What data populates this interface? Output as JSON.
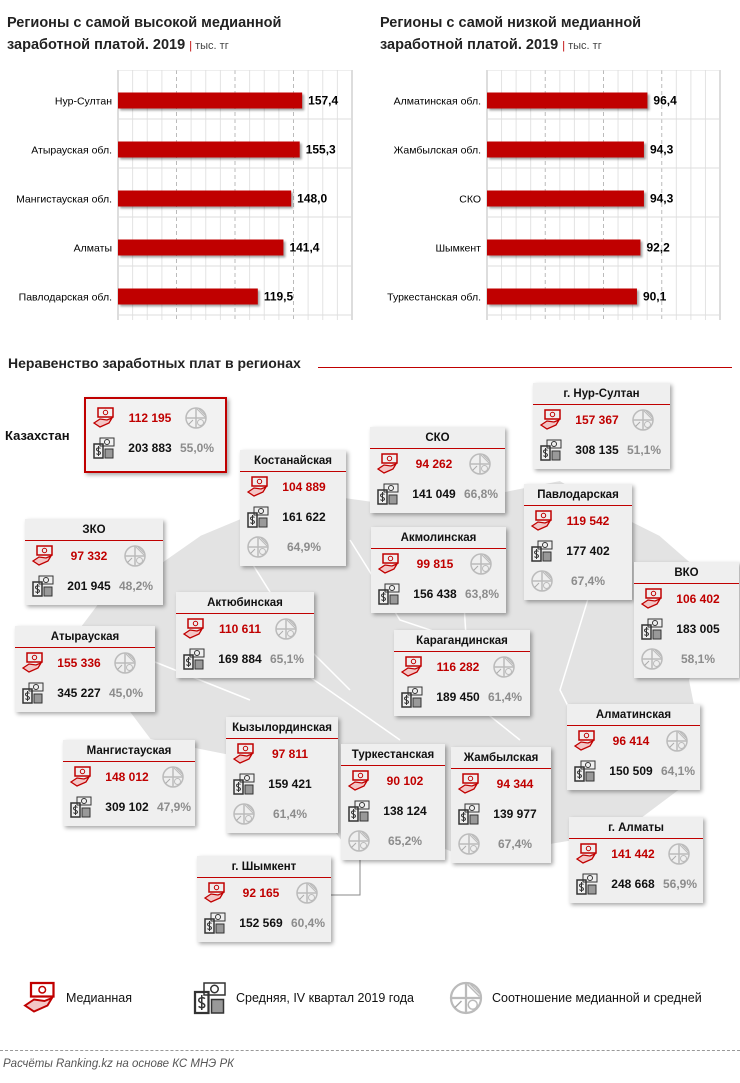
{
  "chart_data": [
    {
      "type": "bar",
      "orientation": "horizontal",
      "title": "Регионы с самой высокой медианной заработной платой. 2019",
      "unit": "тыс. тг",
      "categories": [
        "Нур-Султан",
        "Атырауская обл.",
        "Мангистауская обл.",
        "Алматы",
        "Павлодарская обл."
      ],
      "values": [
        157.4,
        155.3,
        148.0,
        141.4,
        119.5
      ],
      "labels": [
        "157,4",
        "155,3",
        "148,0",
        "141,4",
        "119,5"
      ],
      "xlim": [
        0,
        200
      ],
      "color": "#c00000",
      "grid": true
    },
    {
      "type": "bar",
      "orientation": "horizontal",
      "title": "Регионы с самой низкой медианной заработной платой. 2019",
      "unit": "тыс. тг",
      "categories": [
        "Алматинская обл.",
        "Жамбылская обл.",
        "СКО",
        "Шымкент",
        "Туркестанская обл."
      ],
      "values": [
        96.4,
        94.3,
        94.3,
        92.2,
        90.1
      ],
      "labels": [
        "96,4",
        "94,3",
        "94,3",
        "92,2",
        "90,1"
      ],
      "xlim": [
        0,
        140
      ],
      "color": "#c00000",
      "grid": true
    }
  ],
  "map": {
    "title": "Неравенство заработных плат в регионах",
    "country_label": "Казахстан",
    "regions": [
      {
        "name": "",
        "median": "112 195",
        "mean": "203 883",
        "ratio": "55,0%"
      },
      {
        "name": "г. Нур-Султан",
        "median": "157 367",
        "mean": "308 135",
        "ratio": "51,1%"
      },
      {
        "name": "СКО",
        "median": "94 262",
        "mean": "141 049",
        "ratio": "66,8%"
      },
      {
        "name": "Костанайская",
        "median": "104 889",
        "mean": "161 622",
        "ratio": "64,9%"
      },
      {
        "name": "Павлодарская",
        "median": "119 542",
        "mean": "177 402",
        "ratio": "67,4%"
      },
      {
        "name": "ЗКО",
        "median": "97 332",
        "mean": "201 945",
        "ratio": "48,2%"
      },
      {
        "name": "Акмолинская",
        "median": "99 815",
        "mean": "156 438",
        "ratio": "63,8%"
      },
      {
        "name": "ВКО",
        "median": "106 402",
        "mean": "183 005",
        "ratio": "58,1%"
      },
      {
        "name": "Актюбинская",
        "median": "110 611",
        "mean": "169 884",
        "ratio": "65,1%"
      },
      {
        "name": "Атырауская",
        "median": "155 336",
        "mean": "345 227",
        "ratio": "45,0%"
      },
      {
        "name": "Карагандинская",
        "median": "116 282",
        "mean": "189 450",
        "ratio": "61,4%"
      },
      {
        "name": "Алматинская",
        "median": "96 414",
        "mean": "150 509",
        "ratio": "64,1%"
      },
      {
        "name": "Кызылординская",
        "median": "97 811",
        "mean": "159 421",
        "ratio": "61,4%"
      },
      {
        "name": "Мангистауская",
        "median": "148 012",
        "mean": "309 102",
        "ratio": "47,9%"
      },
      {
        "name": "Туркестанская",
        "median": "90 102",
        "mean": "138 124",
        "ratio": "65,2%"
      },
      {
        "name": "Жамбылская",
        "median": "94 344",
        "mean": "139 977",
        "ratio": "67,4%"
      },
      {
        "name": "г. Алматы",
        "median": "141 442",
        "mean": "248 668",
        "ratio": "56,9%"
      },
      {
        "name": "г. Шымкент",
        "median": "92 165",
        "mean": "152 569",
        "ratio": "60,4%"
      }
    ]
  },
  "legend": {
    "median": "Медианная",
    "mean": "Средняя, IV квартал 2019 года",
    "ratio": "Соотношение медианной и средней"
  },
  "source": "Расчёты Ranking.kz на основе КС МНЭ РК",
  "colors": {
    "accent": "#c00000",
    "median_text": "#c00000",
    "ratio_text": "#8c8c8c",
    "card_bg": "#efefef"
  }
}
